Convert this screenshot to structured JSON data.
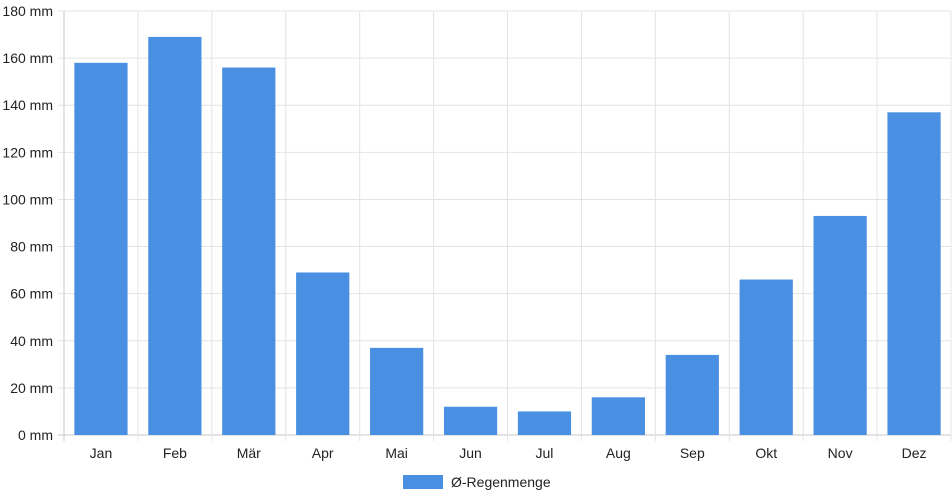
{
  "chart_data": {
    "type": "bar",
    "categories": [
      "Jan",
      "Feb",
      "Mär",
      "Apr",
      "Mai",
      "Jun",
      "Jul",
      "Aug",
      "Sep",
      "Okt",
      "Nov",
      "Dez"
    ],
    "series": [
      {
        "name": "Ø-Regenmenge",
        "values": [
          158,
          169,
          156,
          69,
          37,
          12,
          10,
          16,
          34,
          66,
          93,
          137
        ],
        "color": "#4a90e2"
      }
    ],
    "y_ticks": [
      "0 mm",
      "20 mm",
      "40 mm",
      "60 mm",
      "80 mm",
      "100 mm",
      "120 mm",
      "140 mm",
      "160 mm",
      "180 mm"
    ],
    "ylim": [
      0,
      180
    ],
    "unit": "mm",
    "grid": true,
    "legend_position": "bottom-center"
  }
}
